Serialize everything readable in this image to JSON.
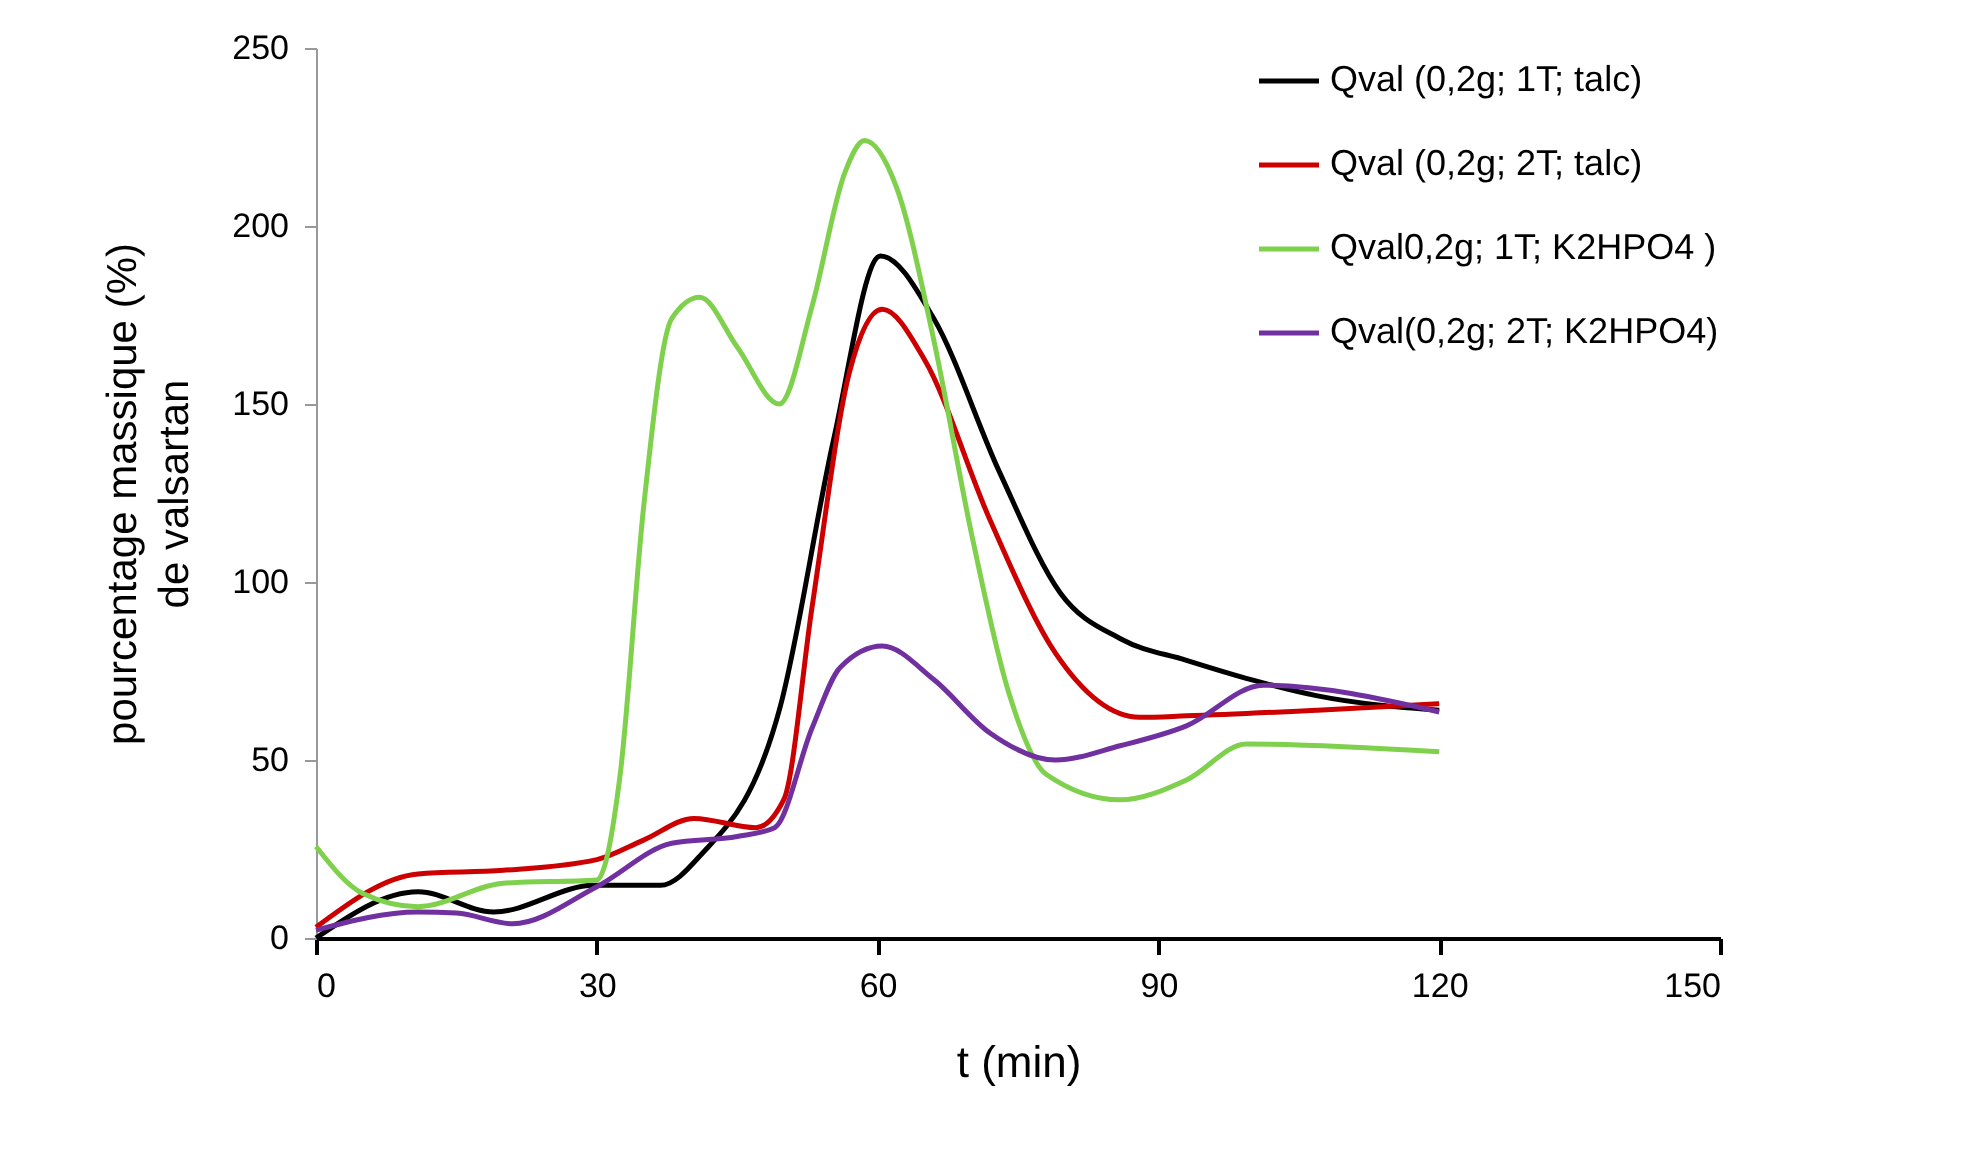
{
  "chart_data": {
    "type": "line",
    "xlabel": "t (min)",
    "ylabel": "pourcentage massique (%)\nde valsartan",
    "xlim": [
      0,
      150
    ],
    "xticks": [
      0,
      30,
      60,
      90,
      120,
      150
    ],
    "ylim": [
      0,
      250
    ],
    "yticks": [
      0,
      50,
      100,
      150,
      200,
      250
    ],
    "grid": false,
    "legend": "top right",
    "marker": "none",
    "line_style": "solid",
    "series": [
      {
        "name": "Qval (0,2g; 1T; talc)",
        "color": "#000000",
        "x": [
          0,
          10.9,
          19,
          29.7,
          36.8,
          41,
          49.6,
          55.3,
          60.3,
          66,
          73,
          79.5,
          86,
          93,
          100,
          107,
          120
        ],
        "values": [
          0,
          13,
          7.3,
          14.8,
          14.8,
          23,
          65,
          140,
          191.6,
          174,
          131,
          97,
          84,
          78,
          72.5,
          68,
          64
        ]
      },
      {
        "name": "Qval (0,2g; 2T; talc)",
        "color": "#cc0000",
        "x": [
          0,
          10.9,
          20,
          30,
          35,
          40.4,
          47,
          50,
          53,
          57,
          60.5,
          65,
          72,
          79,
          88,
          93,
          107,
          120
        ],
        "values": [
          3,
          18,
          19,
          22,
          27.5,
          33.6,
          31,
          39,
          93,
          159,
          176.6,
          162.5,
          117.5,
          80,
          62,
          62.4,
          64,
          65.8
        ]
      },
      {
        "name": "Qval0,2g; 1T; K2HPO4 )",
        "color": "#7fd04c",
        "x": [
          0,
          5,
          10.9,
          20,
          30,
          32.5,
          35,
          38,
          41,
          45,
          49.5,
          53,
          56.5,
          58.6,
          62,
          66,
          70,
          74,
          78,
          85.9,
          93,
          99.4,
          120
        ],
        "values": [
          25.7,
          12.5,
          8.8,
          15.4,
          16.3,
          46,
          121,
          174,
          180,
          166,
          150,
          177.5,
          215,
          224,
          211,
          168,
          114,
          69,
          46,
          38.8,
          44.4,
          54.5,
          52.3
        ]
      },
      {
        "name": "Qval(0,2g; 2T; K2HPO4)",
        "color": "#7030a0",
        "x": [
          0,
          10.9,
          15,
          21,
          30,
          38,
          45,
          49,
          53,
          56,
          60.5,
          66,
          72,
          79,
          85.9,
          93,
          101.2,
          120
        ],
        "values": [
          2.2,
          7.3,
          7,
          4,
          14.4,
          26.6,
          28.5,
          31,
          59,
          76,
          82,
          72.6,
          57.6,
          50,
          54,
          59.6,
          71,
          63.5
        ]
      }
    ]
  }
}
